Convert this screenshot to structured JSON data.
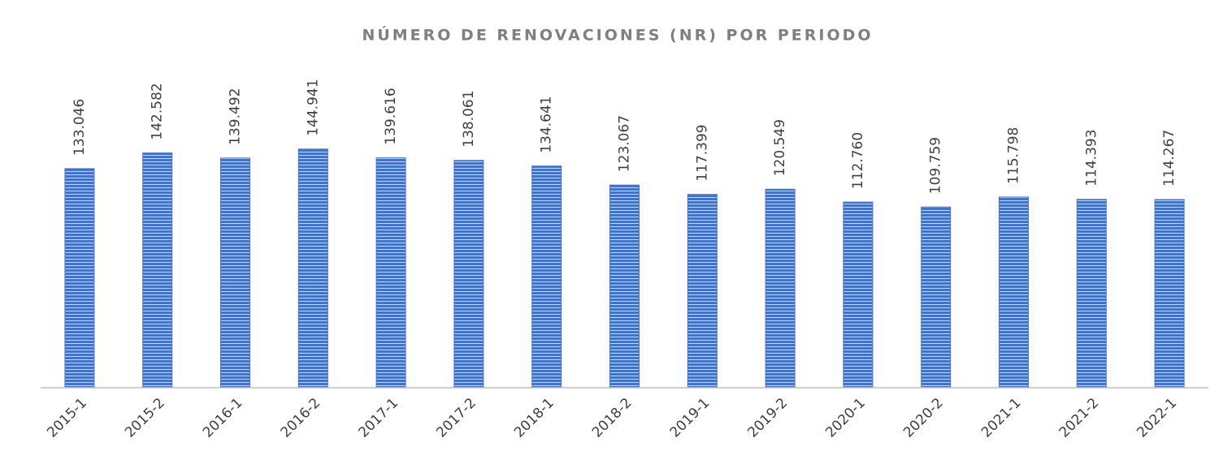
{
  "chart_data": {
    "type": "bar",
    "title": "NÚMERO DE RENOVACIONES (NR) POR PERIODO",
    "categories": [
      "2015-1",
      "2015-2",
      "2016-1",
      "2016-2",
      "2017-1",
      "2017-2",
      "2018-1",
      "2018-2",
      "2019-1",
      "2019-2",
      "2020-1",
      "2020-2",
      "2021-1",
      "2021-2",
      "2022-1"
    ],
    "values": [
      133046,
      142582,
      139492,
      144941,
      139616,
      138061,
      134641,
      123067,
      117399,
      120549,
      112760,
      109759,
      115798,
      114393,
      114267
    ],
    "value_labels": [
      "133.046",
      "142.582",
      "139.492",
      "144.941",
      "139.616",
      "138.061",
      "134.641",
      "123.067",
      "117.399",
      "120.549",
      "112.760",
      "109.759",
      "115.798",
      "114.393",
      "114.267"
    ],
    "color": "#4472c4",
    "ylim": [
      0,
      200000
    ]
  }
}
